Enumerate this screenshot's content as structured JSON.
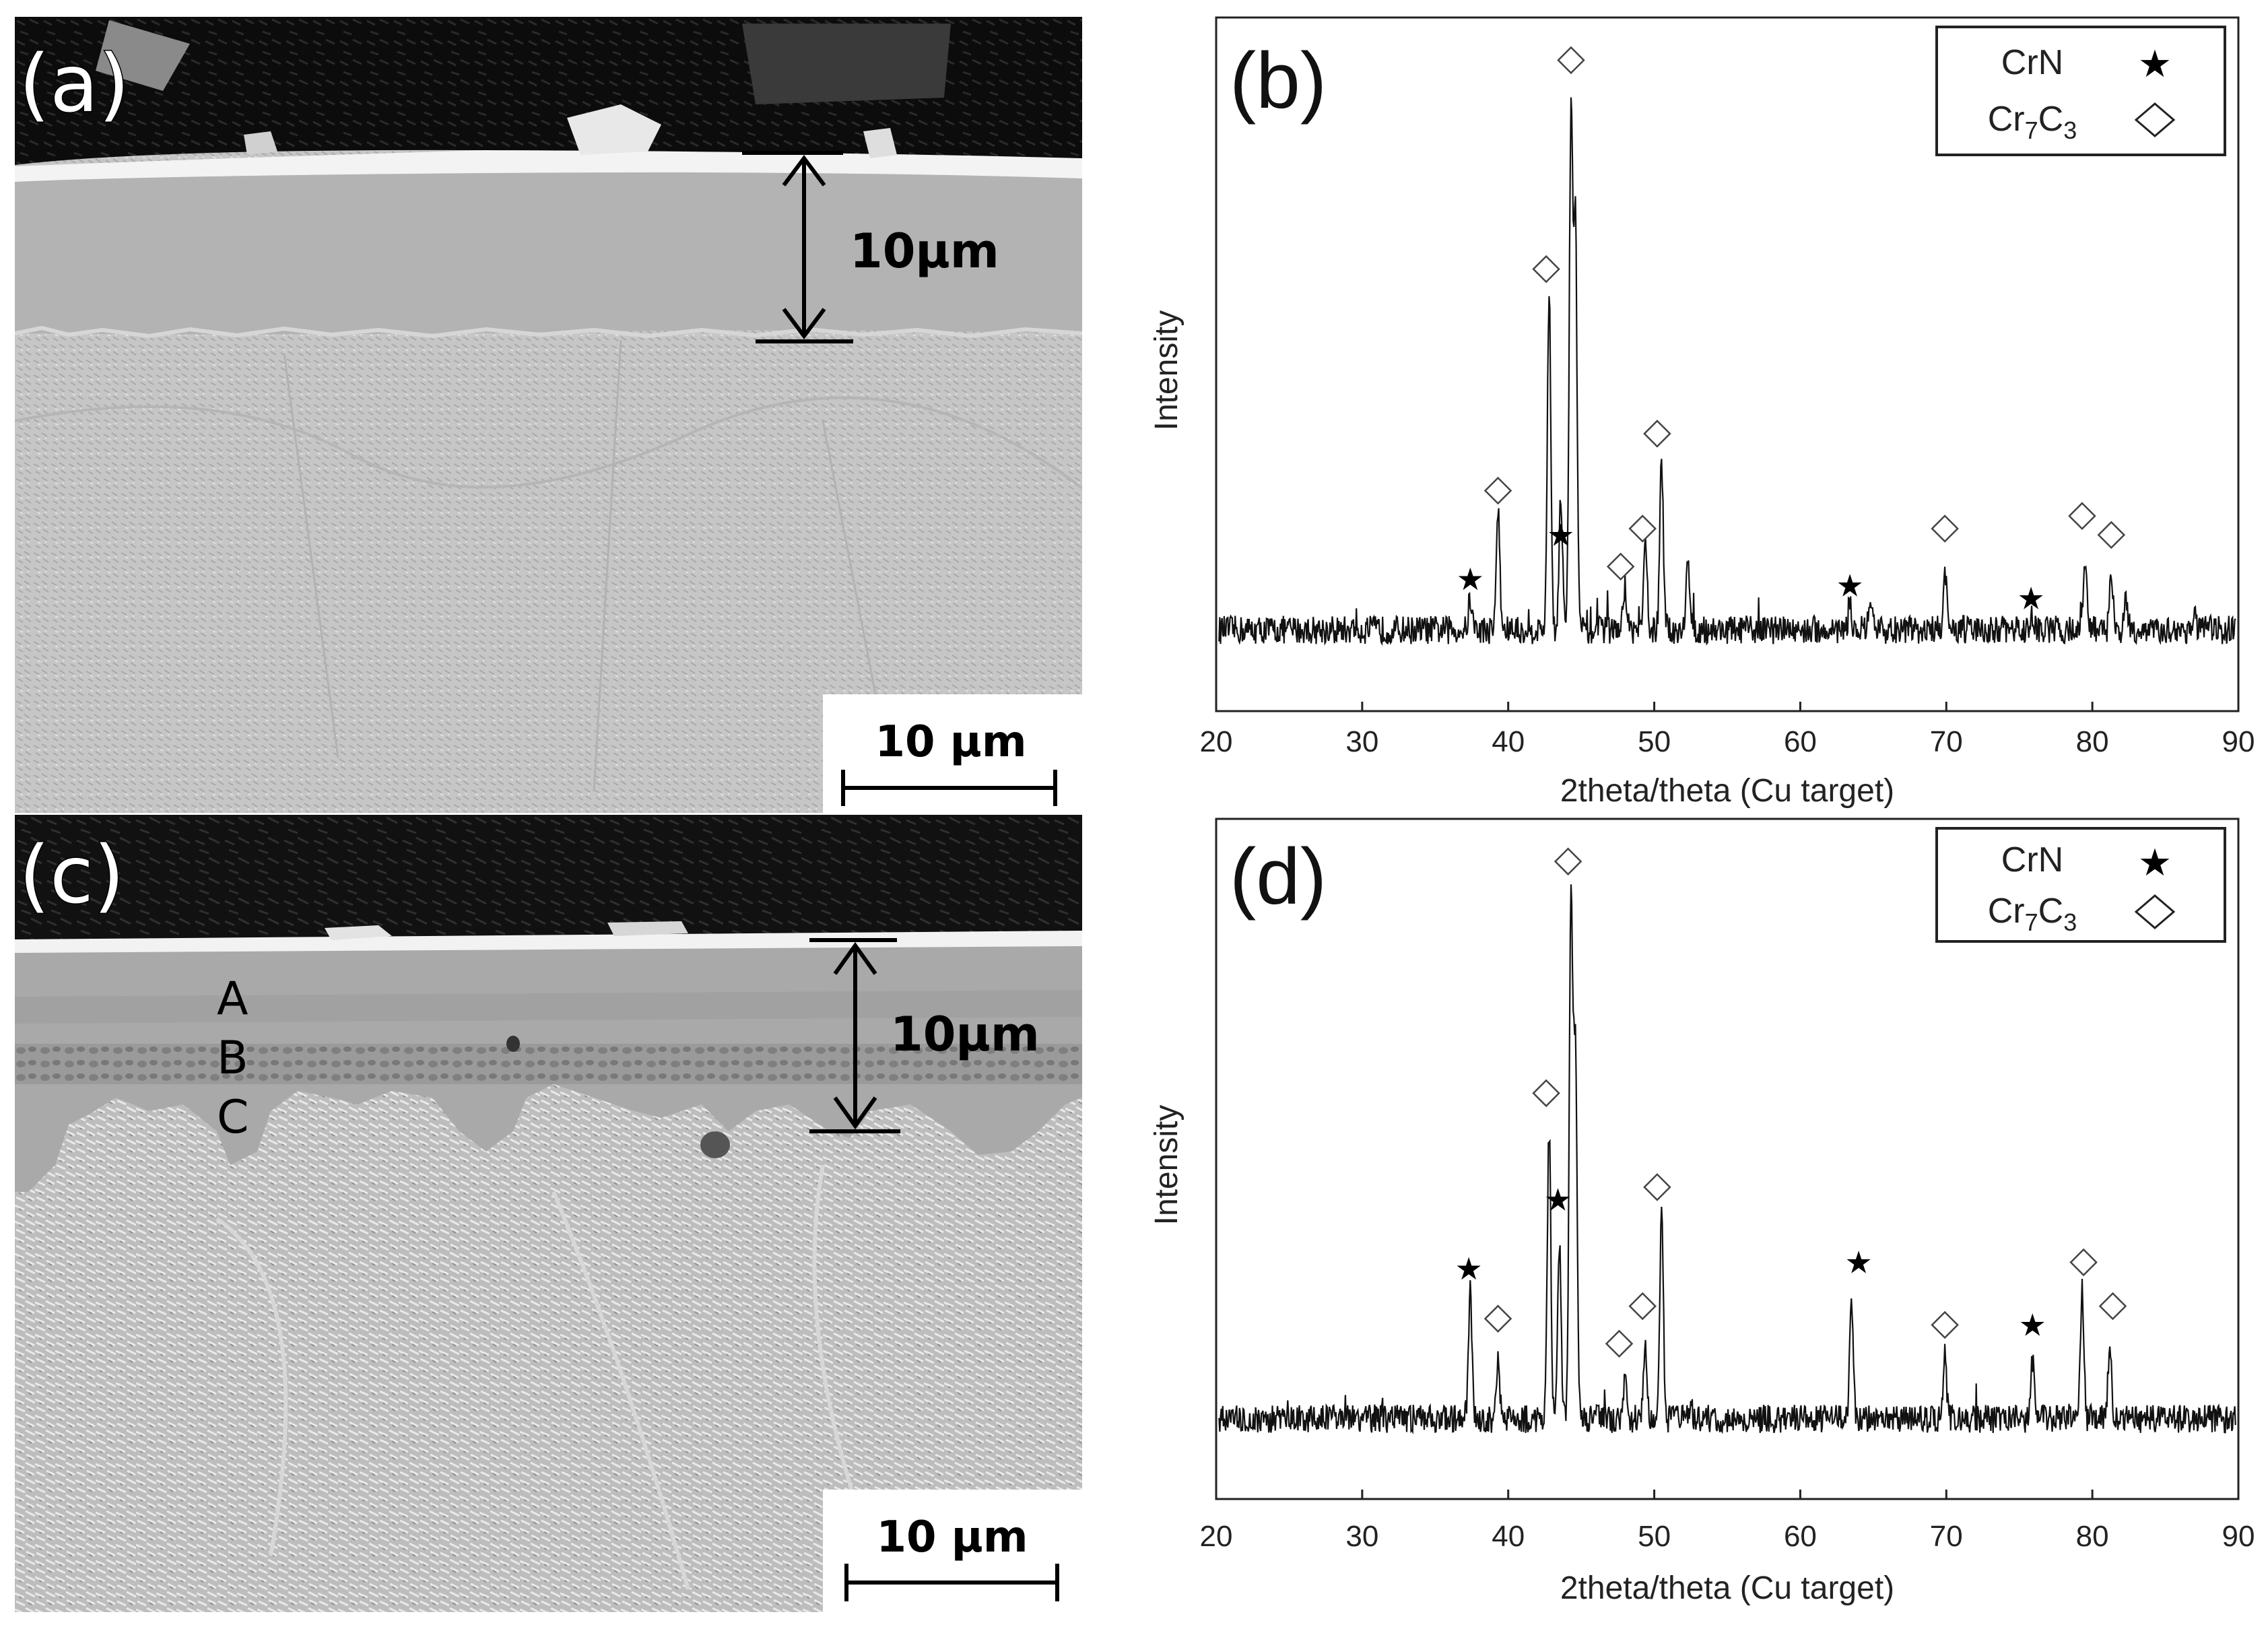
{
  "panels": {
    "a": {
      "label": "(a)",
      "thickness_label": "10μm",
      "scalebar_label": "10 μm"
    },
    "c": {
      "label": "(c)",
      "thickness_label": "10μm",
      "scalebar_label": "10 μm",
      "layers": [
        "A",
        "B",
        "C"
      ]
    }
  },
  "chart_data": [
    {
      "panel": "(b)",
      "type": "line",
      "xlabel": "2theta/theta (Cu target)",
      "ylabel": "Intensity",
      "xlim": [
        20,
        90
      ],
      "xticks": [
        "20",
        "30",
        "40",
        "50",
        "60",
        "70",
        "80",
        "90"
      ],
      "ylim": [
        0,
        100
      ],
      "baseline": 9,
      "legend": {
        "position": "top-right",
        "entries": [
          {
            "name": "CrN",
            "marker": "star"
          },
          {
            "name": "Cr7C3",
            "marker": "diamond"
          }
        ]
      },
      "peaks": [
        {
          "x": 37.4,
          "y": 14
        },
        {
          "x": 39.3,
          "y": 28
        },
        {
          "x": 42.8,
          "y": 62
        },
        {
          "x": 43.6,
          "y": 30
        },
        {
          "x": 44.3,
          "y": 90
        },
        {
          "x": 44.6,
          "y": 72
        },
        {
          "x": 48.0,
          "y": 16
        },
        {
          "x": 49.4,
          "y": 22
        },
        {
          "x": 50.5,
          "y": 35
        },
        {
          "x": 52.3,
          "y": 20
        },
        {
          "x": 63.4,
          "y": 13
        },
        {
          "x": 64.8,
          "y": 12
        },
        {
          "x": 69.9,
          "y": 18
        },
        {
          "x": 75.8,
          "y": 11
        },
        {
          "x": 79.5,
          "y": 20
        },
        {
          "x": 81.3,
          "y": 17
        },
        {
          "x": 82.3,
          "y": 13
        },
        {
          "x": 87.0,
          "y": 11
        }
      ],
      "markers": [
        {
          "x": 37.4,
          "y": 17,
          "type": "star"
        },
        {
          "x": 39.3,
          "y": 31,
          "type": "diamond"
        },
        {
          "x": 42.6,
          "y": 66,
          "type": "diamond"
        },
        {
          "x": 43.6,
          "y": 24,
          "type": "star"
        },
        {
          "x": 44.3,
          "y": 99,
          "type": "diamond"
        },
        {
          "x": 47.7,
          "y": 19,
          "type": "diamond"
        },
        {
          "x": 49.2,
          "y": 25,
          "type": "diamond"
        },
        {
          "x": 50.2,
          "y": 40,
          "type": "diamond"
        },
        {
          "x": 63.4,
          "y": 16,
          "type": "star"
        },
        {
          "x": 69.9,
          "y": 25,
          "type": "diamond"
        },
        {
          "x": 75.8,
          "y": 14,
          "type": "star"
        },
        {
          "x": 79.3,
          "y": 27,
          "type": "diamond"
        },
        {
          "x": 81.3,
          "y": 24,
          "type": "diamond"
        }
      ]
    },
    {
      "panel": "(d)",
      "type": "line",
      "xlabel": "2theta/theta (Cu target)",
      "ylabel": "Intensity",
      "xlim": [
        20,
        90
      ],
      "xticks": [
        "20",
        "30",
        "40",
        "50",
        "60",
        "70",
        "80",
        "90"
      ],
      "ylim": [
        0,
        100
      ],
      "baseline": 10,
      "legend": {
        "position": "top-right",
        "entries": [
          {
            "name": "CrN",
            "marker": "star"
          },
          {
            "name": "Cr7C3",
            "marker": "diamond"
          }
        ]
      },
      "peaks": [
        {
          "x": 37.4,
          "y": 30
        },
        {
          "x": 39.3,
          "y": 20
        },
        {
          "x": 42.8,
          "y": 56
        },
        {
          "x": 43.5,
          "y": 38
        },
        {
          "x": 44.3,
          "y": 94
        },
        {
          "x": 44.6,
          "y": 68
        },
        {
          "x": 48.0,
          "y": 16
        },
        {
          "x": 49.4,
          "y": 21
        },
        {
          "x": 50.5,
          "y": 42
        },
        {
          "x": 63.5,
          "y": 29
        },
        {
          "x": 69.9,
          "y": 20
        },
        {
          "x": 75.9,
          "y": 19
        },
        {
          "x": 79.3,
          "y": 31
        },
        {
          "x": 81.2,
          "y": 22
        }
      ],
      "markers": [
        {
          "x": 37.3,
          "y": 34,
          "type": "star"
        },
        {
          "x": 39.3,
          "y": 26,
          "type": "diamond"
        },
        {
          "x": 42.6,
          "y": 62,
          "type": "diamond"
        },
        {
          "x": 43.4,
          "y": 45,
          "type": "star"
        },
        {
          "x": 44.1,
          "y": 99,
          "type": "diamond"
        },
        {
          "x": 47.6,
          "y": 22,
          "type": "diamond"
        },
        {
          "x": 49.2,
          "y": 28,
          "type": "diamond"
        },
        {
          "x": 50.2,
          "y": 47,
          "type": "diamond"
        },
        {
          "x": 64.0,
          "y": 35,
          "type": "star"
        },
        {
          "x": 69.9,
          "y": 25,
          "type": "diamond"
        },
        {
          "x": 75.9,
          "y": 25,
          "type": "star"
        },
        {
          "x": 79.4,
          "y": 35,
          "type": "diamond"
        },
        {
          "x": 81.4,
          "y": 28,
          "type": "diamond"
        }
      ]
    }
  ]
}
